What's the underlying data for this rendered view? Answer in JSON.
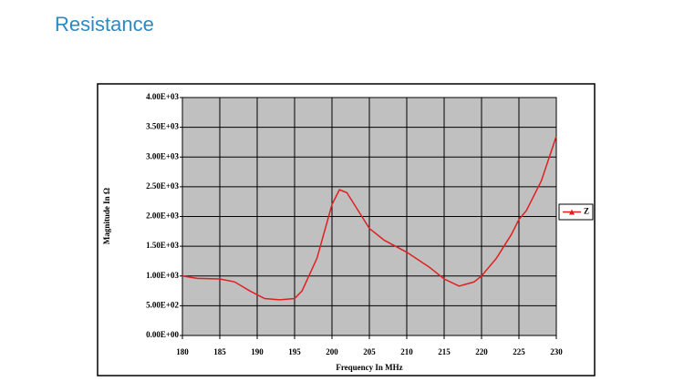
{
  "heading": "Resistance",
  "chart_data": {
    "type": "line",
    "x": [
      180,
      182,
      185,
      187,
      189,
      191,
      193,
      195,
      196,
      198,
      200,
      201,
      202,
      204,
      205,
      207,
      210,
      213,
      215,
      217,
      219,
      220,
      222,
      224,
      225,
      226,
      228,
      230
    ],
    "series": [
      {
        "name": "Z",
        "color": "#e02020",
        "values": [
          1000,
          960,
          950,
          900,
          750,
          620,
          600,
          620,
          750,
          1300,
          2200,
          2450,
          2400,
          2000,
          1800,
          1600,
          1400,
          1150,
          950,
          830,
          900,
          1000,
          1300,
          1700,
          1950,
          2100,
          2600,
          3350
        ]
      }
    ],
    "xlim": [
      180,
      230
    ],
    "xticks": [
      180,
      185,
      190,
      195,
      200,
      205,
      210,
      215,
      220,
      225,
      230
    ],
    "ylim": [
      0,
      4000
    ],
    "yticks": [
      {
        "value": 0,
        "label": "0.00E+00"
      },
      {
        "value": 500,
        "label": "5.00E+02"
      },
      {
        "value": 1000,
        "label": "1.00E+03"
      },
      {
        "value": 1500,
        "label": "1.50E+03"
      },
      {
        "value": 2000,
        "label": "2.00E+03"
      },
      {
        "value": 2500,
        "label": "2.50E+03"
      },
      {
        "value": 3000,
        "label": "3.00E+03"
      },
      {
        "value": 3500,
        "label": "3.50E+03"
      },
      {
        "value": 4000,
        "label": "4.00E+03"
      }
    ],
    "xlabel": "Frequency In MHz",
    "ylabel": "Magnitude In Ω",
    "grid": true,
    "legend": "right"
  }
}
